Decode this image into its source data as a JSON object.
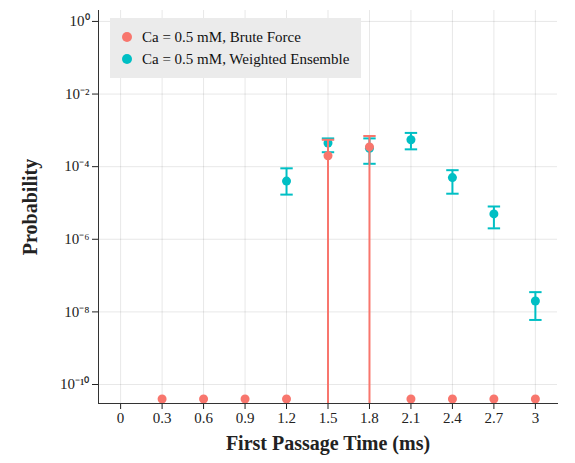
{
  "chart_data": {
    "type": "scatter",
    "x_label": "First Passage Time (ms)",
    "y_label": "Probability",
    "log": "y",
    "grid": true,
    "legend": "top left",
    "xlim": [
      -0.16,
      3.16
    ],
    "xticks": [
      0,
      0.3,
      0.6,
      0.9,
      1.2,
      1.5,
      1.8,
      2.1,
      2.4,
      2.7,
      3
    ],
    "ylim": [
      3e-11,
      2
    ],
    "yticks": [
      {
        "value": 1,
        "label": "10⁰"
      },
      {
        "value": 0.01,
        "label": "10⁻²"
      },
      {
        "value": 0.0001,
        "label": "10⁻⁴"
      },
      {
        "value": 1e-06,
        "label": "10⁻⁶"
      },
      {
        "value": 1e-08,
        "label": "10⁻⁸"
      },
      {
        "value": 1e-10,
        "label": "10⁻¹⁰"
      }
    ],
    "series": [
      {
        "name": "Ca = 0.5 mM, Weighted Ensemble",
        "color": "#00BFC4",
        "marker": "circle",
        "x": [
          1.2,
          1.5,
          1.8,
          2.1,
          2.4,
          2.7,
          3
        ],
        "values": [
          4e-05,
          0.00045,
          0.00032,
          0.00055,
          5e-05,
          5e-06,
          2e-08
        ],
        "error_low": [
          1.7e-05,
          0.00025,
          0.00012,
          0.0003,
          1.8e-05,
          2e-06,
          6e-09
        ],
        "error_high": [
          9e-05,
          0.0006,
          0.0006,
          0.00085,
          8e-05,
          8e-06,
          3.5e-08
        ]
      },
      {
        "name": "Ca = 0.5 mM, Brute Force",
        "color": "#F8766D",
        "marker": "circle",
        "x": [
          0.3,
          0.6,
          0.9,
          1.2,
          1.5,
          1.8,
          2.1,
          2.4,
          2.7,
          3
        ],
        "values": [
          4e-11,
          4e-11,
          4e-11,
          4e-11,
          0.0002,
          0.00035,
          4e-11,
          4e-11,
          4e-11,
          4e-11
        ],
        "error_low": [
          null,
          null,
          null,
          null,
          1e-11,
          1e-11,
          null,
          null,
          null,
          null
        ],
        "error_high": [
          null,
          null,
          null,
          null,
          0.00055,
          0.0007,
          null,
          null,
          null,
          null
        ]
      }
    ]
  }
}
